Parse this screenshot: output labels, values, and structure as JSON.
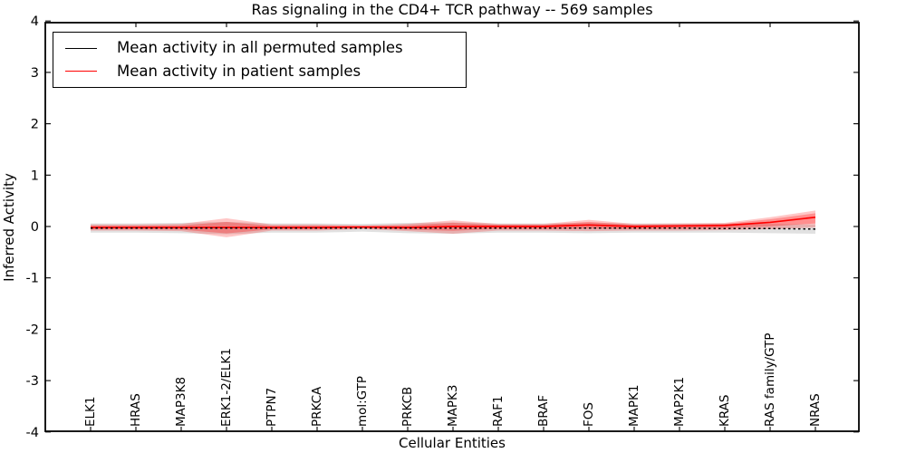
{
  "title": "Ras signaling in the CD4+ TCR pathway -- 569 samples",
  "legend": {
    "items": [
      {
        "label": "Mean activity in all permuted samples",
        "color": "#000000"
      },
      {
        "label": "Mean activity in patient samples",
        "color": "#ff0000"
      }
    ],
    "position": "upper left"
  },
  "chart_data": {
    "type": "line",
    "title": "Ras signaling in the CD4+ TCR pathway -- 569 samples",
    "xlabel": "Cellular Entities",
    "ylabel": "Inferred Activity",
    "ylim": [
      -4,
      4
    ],
    "yticks": [
      -4,
      -3,
      -2,
      -1,
      0,
      1,
      2,
      3,
      4
    ],
    "grid": false,
    "legend_position": "upper left",
    "categories": [
      "ELK1",
      "HRAS",
      "MAP3K8",
      "ERK1-2/ELK1",
      "PTPN7",
      "PRKCA",
      "mol:GTP",
      "PRKCB",
      "MAPK3",
      "RAF1",
      "BRAF",
      "FOS",
      "MAPK1",
      "MAP2K1",
      "KRAS",
      "RAS family/GTP",
      "NRAS"
    ],
    "series": [
      {
        "name": "Mean activity in all permuted samples",
        "color": "#000000",
        "band_color": "#bbbbbb",
        "line_style": "dashed",
        "mean": [
          -0.03,
          -0.03,
          -0.03,
          -0.03,
          -0.03,
          -0.03,
          -0.03,
          -0.03,
          -0.03,
          -0.03,
          -0.03,
          -0.03,
          -0.03,
          -0.03,
          -0.04,
          -0.04,
          -0.05
        ],
        "band_upper": [
          0.06,
          0.06,
          0.07,
          0.09,
          0.06,
          0.06,
          0.05,
          0.07,
          0.08,
          0.06,
          0.06,
          0.07,
          0.06,
          0.06,
          0.06,
          0.05,
          0.04
        ],
        "band_lower": [
          -0.12,
          -0.12,
          -0.13,
          -0.15,
          -0.12,
          -0.12,
          -0.1,
          -0.13,
          -0.14,
          -0.12,
          -0.12,
          -0.13,
          -0.12,
          -0.12,
          -0.12,
          -0.13,
          -0.14
        ]
      },
      {
        "name": "Mean activity in patient samples",
        "color": "#ff0000",
        "band_color": "#ff0000",
        "line_style": "solid",
        "mean": [
          -0.02,
          -0.02,
          -0.02,
          -0.02,
          -0.02,
          -0.02,
          -0.01,
          -0.02,
          0.0,
          0.0,
          0.0,
          0.03,
          0.0,
          0.01,
          0.02,
          0.08,
          0.18
        ],
        "band_upper": [
          0.04,
          0.04,
          0.05,
          0.16,
          0.04,
          0.04,
          0.02,
          0.05,
          0.12,
          0.05,
          0.05,
          0.13,
          0.05,
          0.06,
          0.07,
          0.18,
          0.31
        ],
        "band_lower": [
          -0.08,
          -0.08,
          -0.09,
          -0.21,
          -0.08,
          -0.08,
          -0.05,
          -0.09,
          -0.14,
          -0.08,
          -0.08,
          -0.09,
          -0.08,
          -0.08,
          -0.07,
          -0.05,
          -0.02
        ]
      }
    ]
  }
}
